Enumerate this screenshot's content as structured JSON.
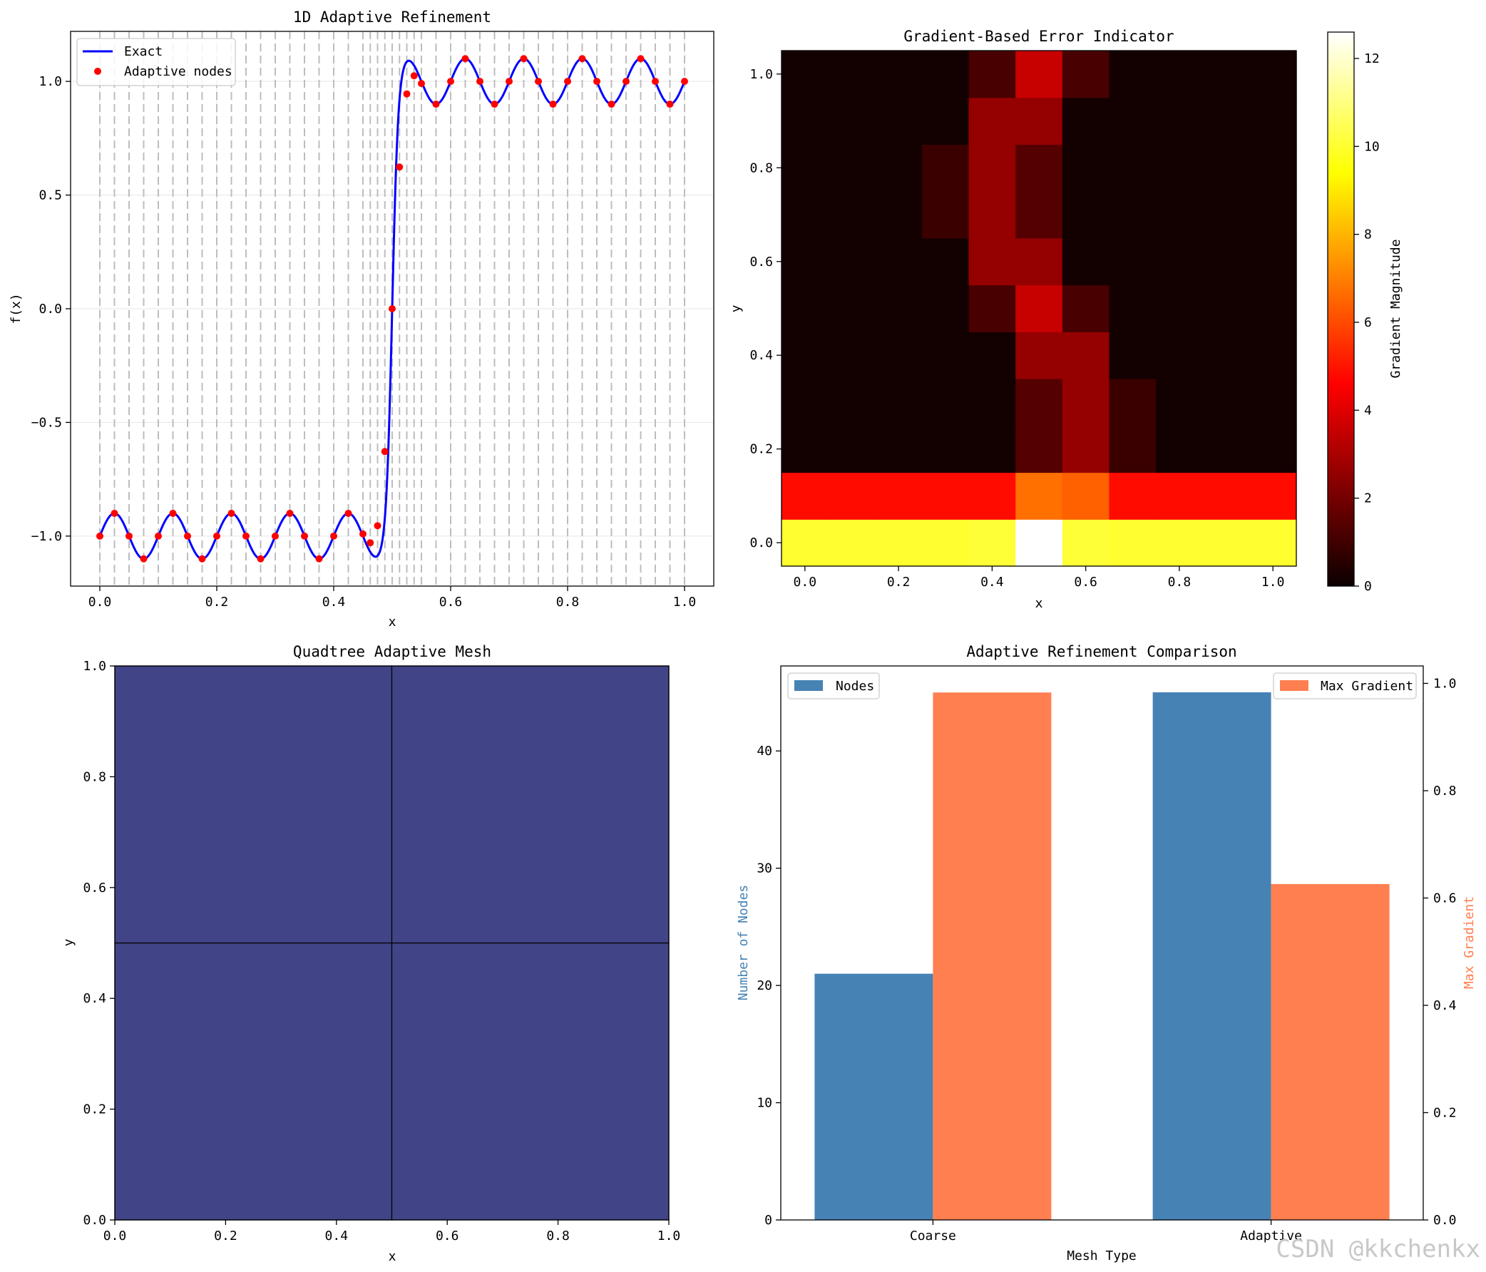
{
  "watermark": "CSDN @kkchenkx",
  "colors": {
    "exact_line": "#0000ff",
    "nodes": "#ff0000",
    "mesh_fill": "#414487",
    "nodes_bar": "#4682b4",
    "gradient_bar": "#ff7f50"
  },
  "chart_data": [
    {
      "id": "p1",
      "type": "line",
      "title": "1D Adaptive Refinement",
      "xlabel": "x",
      "ylabel": "f(x)",
      "xlim": [
        -0.05,
        1.05
      ],
      "ylim": [
        -1.22,
        1.22
      ],
      "xticks": [
        0.0,
        0.2,
        0.4,
        0.6,
        0.8,
        1.0
      ],
      "xtick_labels": [
        "0.0",
        "0.2",
        "0.4",
        "0.6",
        "0.8",
        "1.0"
      ],
      "yticks": [
        -1.0,
        -0.5,
        0.0,
        0.5,
        1.0
      ],
      "ytick_labels": [
        "−1.0",
        "−0.5",
        "0.0",
        "0.5",
        "1.0"
      ],
      "grid": true,
      "legend": {
        "position": "upper-left",
        "entries": [
          "Exact",
          "Adaptive nodes"
        ]
      },
      "series": [
        {
          "name": "Exact",
          "kind": "line",
          "function": "tanh(100*(x-0.5)) + 0.1*sin(20*pi*x)",
          "x_range": [
            0,
            1
          ]
        },
        {
          "name": "Adaptive nodes",
          "kind": "markers",
          "x": [
            0.0,
            0.025,
            0.05,
            0.075,
            0.1,
            0.125,
            0.15,
            0.175,
            0.2,
            0.225,
            0.25,
            0.275,
            0.3,
            0.325,
            0.35,
            0.375,
            0.4,
            0.425,
            0.45,
            0.4625,
            0.475,
            0.4875,
            0.5,
            0.5125,
            0.525,
            0.5375,
            0.55,
            0.575,
            0.6,
            0.625,
            0.65,
            0.675,
            0.7,
            0.725,
            0.75,
            0.775,
            0.8,
            0.825,
            0.85,
            0.875,
            0.9,
            0.925,
            0.95,
            0.975,
            1.0
          ],
          "y": [
            -1.0,
            -0.9,
            -1.0,
            -1.1,
            -1.0,
            -0.9,
            -1.0,
            -1.1,
            -1.0,
            -0.9,
            -1.0,
            -1.1,
            -1.0,
            -0.9,
            -1.0,
            -1.1,
            -1.0,
            -0.9,
            -0.9907,
            -1.0293,
            -0.9544,
            -0.6282,
            0.0,
            0.6234,
            0.9449,
            1.0248,
            0.9907,
            0.9,
            1.0,
            1.1,
            1.0,
            0.9,
            1.0,
            1.1,
            1.0,
            0.9,
            1.0,
            1.1,
            1.0,
            0.9,
            1.0,
            1.1,
            1.0,
            0.9,
            1.0
          ]
        }
      ],
      "vlines": "dashed gray vertical line at every adaptive node x"
    },
    {
      "id": "p2",
      "type": "heatmap",
      "title": "Gradient-Based Error Indicator",
      "xlabel": "x",
      "ylabel": "y",
      "x_centers": [
        0.0,
        0.1,
        0.2,
        0.3,
        0.4,
        0.5,
        0.6,
        0.7,
        0.8,
        0.9,
        1.0
      ],
      "y_centers": [
        0.0,
        0.1,
        0.2,
        0.3,
        0.4,
        0.5,
        0.6,
        0.7,
        0.8,
        0.9,
        1.0
      ],
      "xticks": [
        0.0,
        0.2,
        0.4,
        0.6,
        0.8,
        1.0
      ],
      "xtick_labels": [
        "0.0",
        "0.2",
        "0.4",
        "0.6",
        "0.8",
        "1.0"
      ],
      "yticks": [
        0.0,
        0.2,
        0.4,
        0.6,
        0.8,
        1.0
      ],
      "ytick_labels": [
        "0.0",
        "0.2",
        "0.4",
        "0.6",
        "0.8",
        "1.0"
      ],
      "colormap": "hot",
      "vmin": 0,
      "vmax": 12.6,
      "colorbar_label": "Gradient Magnitude",
      "colorbar_ticks": [
        0,
        2,
        4,
        6,
        8,
        10,
        12
      ],
      "colorbar_tick_labels": [
        "0",
        "2",
        "4",
        "6",
        "8",
        "10",
        "12"
      ],
      "values_rows_bottom_to_top": [
        [
          10.0,
          10.0,
          10.0,
          10.0,
          10.1,
          12.6,
          10.1,
          10.0,
          10.0,
          10.0,
          10.0
        ],
        [
          4.8,
          4.8,
          4.8,
          4.8,
          4.8,
          6.7,
          6.4,
          4.8,
          4.8,
          4.8,
          4.8
        ],
        [
          0.15,
          0.15,
          0.15,
          0.15,
          0.15,
          1.35,
          2.5,
          0.85,
          0.15,
          0.15,
          0.15
        ],
        [
          0.15,
          0.15,
          0.15,
          0.15,
          0.15,
          1.35,
          2.5,
          0.85,
          0.15,
          0.15,
          0.15
        ],
        [
          0.15,
          0.15,
          0.15,
          0.15,
          0.15,
          2.5,
          2.5,
          0.15,
          0.15,
          0.15,
          0.15
        ],
        [
          0.15,
          0.15,
          0.15,
          0.15,
          1.1,
          3.4,
          1.1,
          0.15,
          0.15,
          0.15,
          0.15
        ],
        [
          0.15,
          0.15,
          0.15,
          0.15,
          2.5,
          2.5,
          0.15,
          0.15,
          0.15,
          0.15,
          0.15
        ],
        [
          0.15,
          0.15,
          0.15,
          0.85,
          2.5,
          1.35,
          0.15,
          0.15,
          0.15,
          0.15,
          0.15
        ],
        [
          0.15,
          0.15,
          0.15,
          0.85,
          2.5,
          1.35,
          0.15,
          0.15,
          0.15,
          0.15,
          0.15
        ],
        [
          0.15,
          0.15,
          0.15,
          0.15,
          2.5,
          2.5,
          0.15,
          0.15,
          0.15,
          0.15,
          0.15
        ],
        [
          0.15,
          0.15,
          0.15,
          0.15,
          1.1,
          3.4,
          1.1,
          0.15,
          0.15,
          0.15,
          0.15
        ]
      ]
    },
    {
      "id": "p3",
      "type": "mesh",
      "title": "Quadtree Adaptive Mesh",
      "xlabel": "x",
      "ylabel": "y",
      "xlim": [
        0,
        1
      ],
      "ylim": [
        0,
        1
      ],
      "xticks": [
        0.0,
        0.2,
        0.4,
        0.6,
        0.8,
        1.0
      ],
      "xtick_labels": [
        "0.0",
        "0.2",
        "0.4",
        "0.6",
        "0.8",
        "1.0"
      ],
      "yticks": [
        0.0,
        0.2,
        0.4,
        0.6,
        0.8,
        1.0
      ],
      "ytick_labels": [
        "0.0",
        "0.2",
        "0.4",
        "0.6",
        "0.8",
        "1.0"
      ],
      "cells": [
        {
          "x0": 0.0,
          "y0": 0.0,
          "x1": 0.5,
          "y1": 0.5
        },
        {
          "x0": 0.5,
          "y0": 0.0,
          "x1": 1.0,
          "y1": 0.5
        },
        {
          "x0": 0.0,
          "y0": 0.5,
          "x1": 0.5,
          "y1": 1.0
        },
        {
          "x0": 0.5,
          "y0": 0.5,
          "x1": 1.0,
          "y1": 1.0
        }
      ]
    },
    {
      "id": "p4",
      "type": "bar",
      "title": "Adaptive Refinement Comparison",
      "xlabel": "Mesh Type",
      "categories": [
        "Coarse",
        "Adaptive"
      ],
      "left_axis": {
        "label": "Number of Nodes",
        "ylim": [
          0,
          47.25
        ],
        "ticks": [
          0,
          10,
          20,
          30,
          40
        ],
        "tick_labels": [
          "0",
          "10",
          "20",
          "30",
          "40"
        ]
      },
      "right_axis": {
        "label": "Max Gradient",
        "ylim": [
          0,
          1.0325
        ],
        "ticks": [
          0.0,
          0.2,
          0.4,
          0.6,
          0.8,
          1.0
        ],
        "tick_labels": [
          "0.0",
          "0.2",
          "0.4",
          "0.6",
          "0.8",
          "1.0"
        ]
      },
      "series": [
        {
          "name": "Nodes",
          "axis": "left",
          "values": [
            21,
            45
          ]
        },
        {
          "name": "Max Gradient",
          "axis": "right",
          "values": [
            0.983,
            0.626
          ]
        }
      ],
      "legends": [
        {
          "position": "upper-left",
          "entries": [
            "Nodes"
          ]
        },
        {
          "position": "upper-right",
          "entries": [
            "Max Gradient"
          ]
        }
      ]
    }
  ]
}
